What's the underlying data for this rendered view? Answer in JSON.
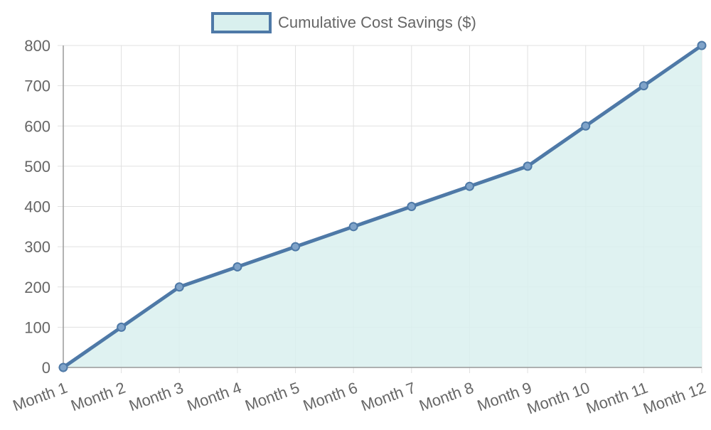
{
  "chart_data": {
    "type": "area",
    "categories": [
      "Month 1",
      "Month 2",
      "Month 3",
      "Month 4",
      "Month 5",
      "Month 6",
      "Month 7",
      "Month 8",
      "Month 9",
      "Month 10",
      "Month 11",
      "Month 12"
    ],
    "series": [
      {
        "name": "Cumulative Cost Savings ($)",
        "values": [
          0,
          100,
          200,
          250,
          300,
          350,
          400,
          450,
          500,
          600,
          700,
          800
        ]
      }
    ],
    "ylim": [
      0,
      800
    ],
    "yticks": [
      0,
      100,
      200,
      300,
      400,
      500,
      600,
      700,
      800
    ],
    "grid": true,
    "legend_position": "top-center",
    "colors": {
      "line": "#4e79a7",
      "fill": "#d9f0ee",
      "grid": "#e0e0e0",
      "axis": "#999999",
      "text": "#666666"
    }
  }
}
